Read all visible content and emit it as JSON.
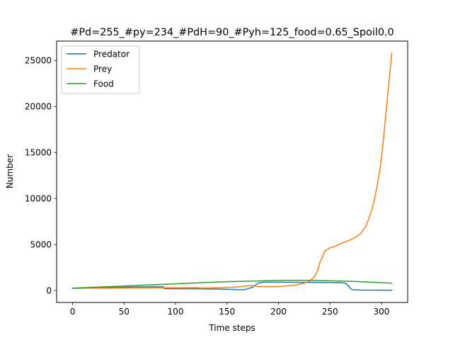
{
  "chart_data": {
    "type": "line",
    "title": "#Pd=255_#py=234_#PdH=90_#Pyh=125_food=0.65_Spoil0.0",
    "xlabel": "Time steps",
    "ylabel": "Number",
    "xlim": [
      -15.5,
      325.5
    ],
    "ylim": [
      -1300,
      27100
    ],
    "xticks": [
      0,
      50,
      100,
      150,
      200,
      250,
      300
    ],
    "yticks": [
      0,
      5000,
      10000,
      15000,
      20000,
      25000
    ],
    "grid": false,
    "legend_position": "upper-left",
    "series": [
      {
        "name": "Predator",
        "color": "#1f77b4",
        "points": [
          [
            0,
            255
          ],
          [
            20,
            300
          ],
          [
            40,
            340
          ],
          [
            60,
            380
          ],
          [
            88,
            400
          ],
          [
            89,
            200
          ],
          [
            100,
            190
          ],
          [
            120,
            180
          ],
          [
            140,
            160
          ],
          [
            155,
            120
          ],
          [
            162,
            70
          ],
          [
            168,
            120
          ],
          [
            175,
            350
          ],
          [
            180,
            800
          ],
          [
            185,
            900
          ],
          [
            200,
            900
          ],
          [
            220,
            880
          ],
          [
            240,
            870
          ],
          [
            260,
            850
          ],
          [
            265,
            800
          ],
          [
            268,
            500
          ],
          [
            270,
            200
          ],
          [
            272,
            80
          ],
          [
            280,
            50
          ],
          [
            300,
            40
          ],
          [
            310,
            30
          ]
        ]
      },
      {
        "name": "Prey",
        "color": "#ff7f0e",
        "points": [
          [
            0,
            234
          ],
          [
            20,
            250
          ],
          [
            40,
            260
          ],
          [
            60,
            280
          ],
          [
            80,
            290
          ],
          [
            100,
            300
          ],
          [
            120,
            330
          ],
          [
            125,
            260
          ],
          [
            140,
            300
          ],
          [
            160,
            380
          ],
          [
            170,
            500
          ],
          [
            175,
            540
          ],
          [
            180,
            420
          ],
          [
            200,
            430
          ],
          [
            215,
            560
          ],
          [
            225,
            800
          ],
          [
            230,
            1000
          ],
          [
            235,
            1500
          ],
          [
            238,
            2200
          ],
          [
            240,
            3000
          ],
          [
            243,
            3700
          ],
          [
            245,
            4300
          ],
          [
            248,
            4500
          ],
          [
            250,
            4650
          ],
          [
            255,
            4800
          ],
          [
            260,
            5050
          ],
          [
            265,
            5300
          ],
          [
            270,
            5500
          ],
          [
            275,
            5800
          ],
          [
            280,
            6200
          ],
          [
            285,
            7000
          ],
          [
            290,
            8500
          ],
          [
            293,
            9800
          ],
          [
            296,
            11500
          ],
          [
            299,
            13500
          ],
          [
            302,
            16500
          ],
          [
            305,
            20000
          ],
          [
            308,
            23500
          ],
          [
            310,
            25800
          ]
        ]
      },
      {
        "name": "Food",
        "color": "#2ca02c",
        "points": [
          [
            0,
            250
          ],
          [
            25,
            370
          ],
          [
            50,
            480
          ],
          [
            75,
            600
          ],
          [
            100,
            730
          ],
          [
            125,
            850
          ],
          [
            150,
            960
          ],
          [
            175,
            1020
          ],
          [
            200,
            1100
          ],
          [
            225,
            1110
          ],
          [
            250,
            1060
          ],
          [
            275,
            980
          ],
          [
            300,
            850
          ],
          [
            310,
            800
          ]
        ]
      }
    ]
  }
}
